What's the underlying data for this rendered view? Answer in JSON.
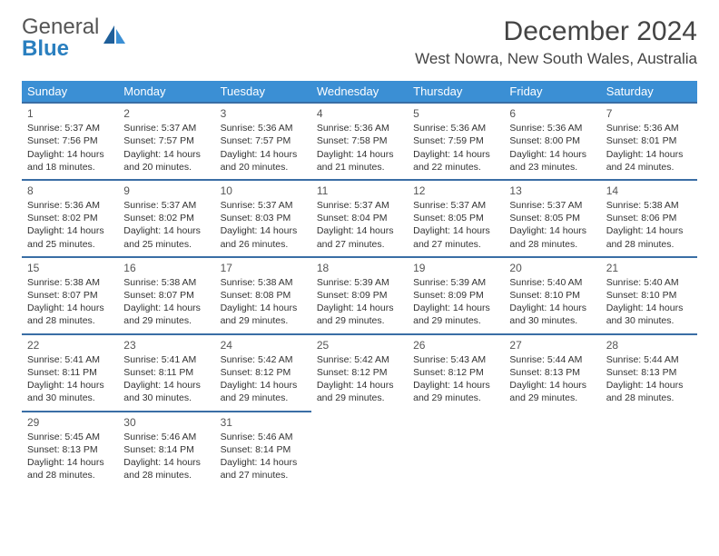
{
  "logo": {
    "top": "General",
    "bottom": "Blue"
  },
  "title": "December 2024",
  "location": "West Nowra, New South Wales, Australia",
  "colors": {
    "header_bg": "#3b8fd4",
    "header_text": "#ffffff",
    "cell_border": "#3a6ea5",
    "text": "#333333",
    "logo_top": "#555555",
    "logo_bottom": "#2a7fbf",
    "background": "#ffffff"
  },
  "weekdays": [
    "Sunday",
    "Monday",
    "Tuesday",
    "Wednesday",
    "Thursday",
    "Friday",
    "Saturday"
  ],
  "days": [
    {
      "n": "1",
      "sr": "5:37 AM",
      "ss": "7:56 PM",
      "dl": "14 hours and 18 minutes."
    },
    {
      "n": "2",
      "sr": "5:37 AM",
      "ss": "7:57 PM",
      "dl": "14 hours and 20 minutes."
    },
    {
      "n": "3",
      "sr": "5:36 AM",
      "ss": "7:57 PM",
      "dl": "14 hours and 20 minutes."
    },
    {
      "n": "4",
      "sr": "5:36 AM",
      "ss": "7:58 PM",
      "dl": "14 hours and 21 minutes."
    },
    {
      "n": "5",
      "sr": "5:36 AM",
      "ss": "7:59 PM",
      "dl": "14 hours and 22 minutes."
    },
    {
      "n": "6",
      "sr": "5:36 AM",
      "ss": "8:00 PM",
      "dl": "14 hours and 23 minutes."
    },
    {
      "n": "7",
      "sr": "5:36 AM",
      "ss": "8:01 PM",
      "dl": "14 hours and 24 minutes."
    },
    {
      "n": "8",
      "sr": "5:36 AM",
      "ss": "8:02 PM",
      "dl": "14 hours and 25 minutes."
    },
    {
      "n": "9",
      "sr": "5:37 AM",
      "ss": "8:02 PM",
      "dl": "14 hours and 25 minutes."
    },
    {
      "n": "10",
      "sr": "5:37 AM",
      "ss": "8:03 PM",
      "dl": "14 hours and 26 minutes."
    },
    {
      "n": "11",
      "sr": "5:37 AM",
      "ss": "8:04 PM",
      "dl": "14 hours and 27 minutes."
    },
    {
      "n": "12",
      "sr": "5:37 AM",
      "ss": "8:05 PM",
      "dl": "14 hours and 27 minutes."
    },
    {
      "n": "13",
      "sr": "5:37 AM",
      "ss": "8:05 PM",
      "dl": "14 hours and 28 minutes."
    },
    {
      "n": "14",
      "sr": "5:38 AM",
      "ss": "8:06 PM",
      "dl": "14 hours and 28 minutes."
    },
    {
      "n": "15",
      "sr": "5:38 AM",
      "ss": "8:07 PM",
      "dl": "14 hours and 28 minutes."
    },
    {
      "n": "16",
      "sr": "5:38 AM",
      "ss": "8:07 PM",
      "dl": "14 hours and 29 minutes."
    },
    {
      "n": "17",
      "sr": "5:38 AM",
      "ss": "8:08 PM",
      "dl": "14 hours and 29 minutes."
    },
    {
      "n": "18",
      "sr": "5:39 AM",
      "ss": "8:09 PM",
      "dl": "14 hours and 29 minutes."
    },
    {
      "n": "19",
      "sr": "5:39 AM",
      "ss": "8:09 PM",
      "dl": "14 hours and 29 minutes."
    },
    {
      "n": "20",
      "sr": "5:40 AM",
      "ss": "8:10 PM",
      "dl": "14 hours and 30 minutes."
    },
    {
      "n": "21",
      "sr": "5:40 AM",
      "ss": "8:10 PM",
      "dl": "14 hours and 30 minutes."
    },
    {
      "n": "22",
      "sr": "5:41 AM",
      "ss": "8:11 PM",
      "dl": "14 hours and 30 minutes."
    },
    {
      "n": "23",
      "sr": "5:41 AM",
      "ss": "8:11 PM",
      "dl": "14 hours and 30 minutes."
    },
    {
      "n": "24",
      "sr": "5:42 AM",
      "ss": "8:12 PM",
      "dl": "14 hours and 29 minutes."
    },
    {
      "n": "25",
      "sr": "5:42 AM",
      "ss": "8:12 PM",
      "dl": "14 hours and 29 minutes."
    },
    {
      "n": "26",
      "sr": "5:43 AM",
      "ss": "8:12 PM",
      "dl": "14 hours and 29 minutes."
    },
    {
      "n": "27",
      "sr": "5:44 AM",
      "ss": "8:13 PM",
      "dl": "14 hours and 29 minutes."
    },
    {
      "n": "28",
      "sr": "5:44 AM",
      "ss": "8:13 PM",
      "dl": "14 hours and 28 minutes."
    },
    {
      "n": "29",
      "sr": "5:45 AM",
      "ss": "8:13 PM",
      "dl": "14 hours and 28 minutes."
    },
    {
      "n": "30",
      "sr": "5:46 AM",
      "ss": "8:14 PM",
      "dl": "14 hours and 28 minutes."
    },
    {
      "n": "31",
      "sr": "5:46 AM",
      "ss": "8:14 PM",
      "dl": "14 hours and 27 minutes."
    }
  ],
  "labels": {
    "sunrise": "Sunrise:",
    "sunset": "Sunset:",
    "daylight": "Daylight:"
  }
}
